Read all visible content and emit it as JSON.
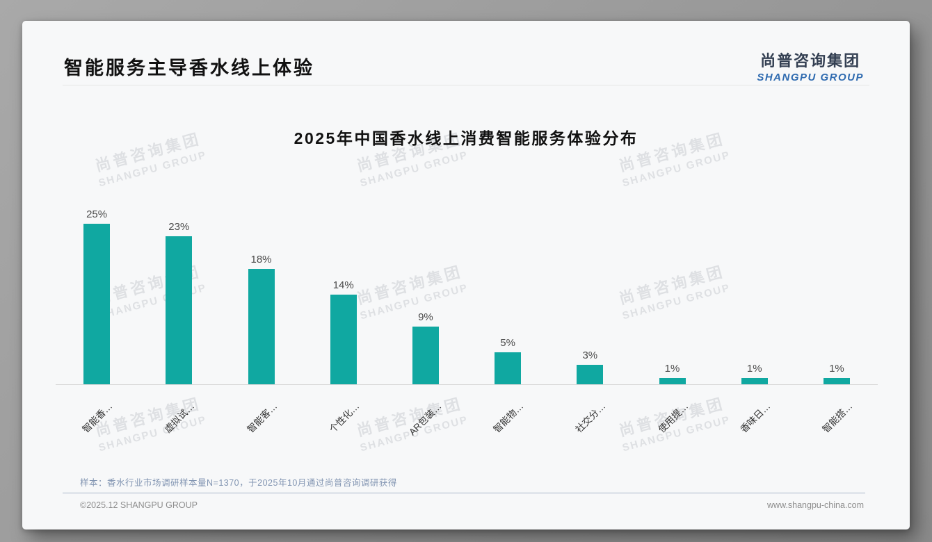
{
  "page": {
    "title": "智能服务主导香水线上体验",
    "logo": {
      "cn": "尚普咨询集团",
      "en": "SHANGPU GROUP"
    },
    "watermark": {
      "cn": "尚普咨询集团",
      "en": "SHANGPU GROUP"
    },
    "footnote": "样本：香水行业市场调研样本量N=1370，于2025年10月通过尚普咨询调研获得",
    "footer_left": "©2025.12 SHANGPU GROUP",
    "footer_right": "www.shangpu-china.com"
  },
  "chart_data": {
    "type": "bar",
    "title": "2025年中国香水线上消费智能服务体验分布",
    "categories": [
      "智能香…",
      "虚拟试…",
      "智能客…",
      "个性化…",
      "AR包装…",
      "智能物…",
      "社交分…",
      "使用提…",
      "香味日…",
      "智能搭…"
    ],
    "values": [
      25,
      23,
      18,
      14,
      9,
      5,
      3,
      1,
      1,
      1
    ],
    "value_labels": [
      "25%",
      "23%",
      "18%",
      "14%",
      "9%",
      "5%",
      "3%",
      "1%",
      "1%",
      "1%"
    ],
    "unit": "%",
    "xlabel": "",
    "ylabel": "",
    "ylim": [
      0,
      28
    ],
    "grid": false,
    "legend": "none",
    "bar_color": "#10a8a1",
    "value_label_color": "#4a4a4a",
    "x_label_rotation_deg": -45
  }
}
